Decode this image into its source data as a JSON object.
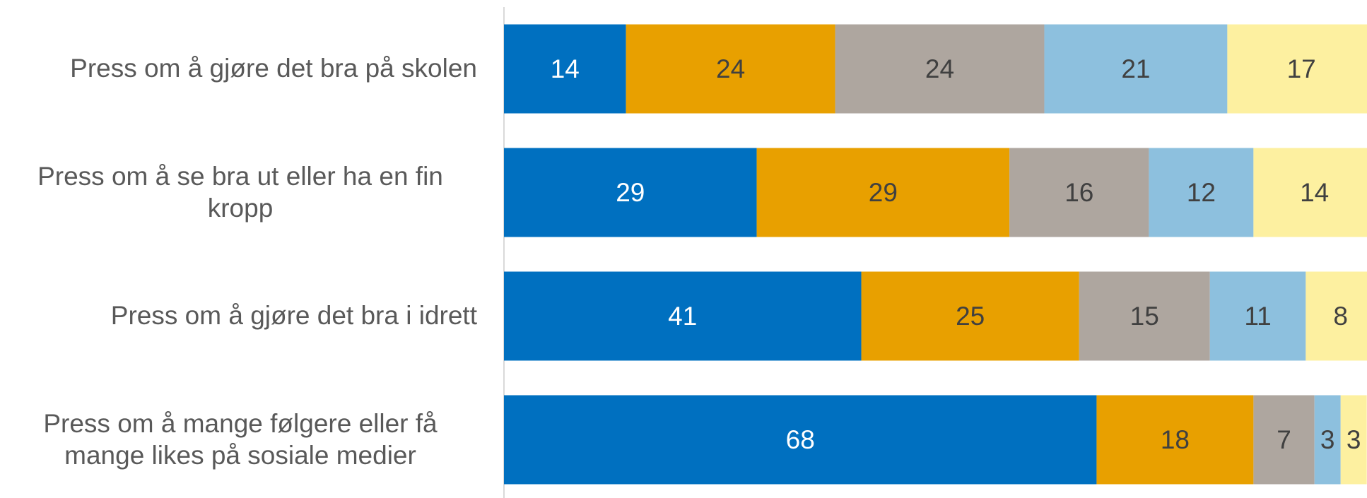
{
  "chart_data": {
    "type": "stacked_bar_horizontal",
    "categories": [
      "Press om å gjøre det bra på skolen",
      "Press om å se bra ut eller ha en fin kropp",
      "Press om å gjøre det bra i idrett",
      "Press om å mange følgere eller få mange likes på sosiale medier"
    ],
    "series": [
      {
        "color": "#0070c0",
        "values": [
          14,
          29,
          41,
          68
        ]
      },
      {
        "color": "#e8a000",
        "values": [
          24,
          29,
          25,
          18
        ]
      },
      {
        "color": "#aea69f",
        "values": [
          24,
          16,
          15,
          7
        ]
      },
      {
        "color": "#8dc0de",
        "values": [
          21,
          12,
          11,
          3
        ]
      },
      {
        "color": "#fdf0a0",
        "values": [
          17,
          14,
          8,
          3
        ]
      }
    ],
    "xlim": [
      0,
      100
    ]
  }
}
